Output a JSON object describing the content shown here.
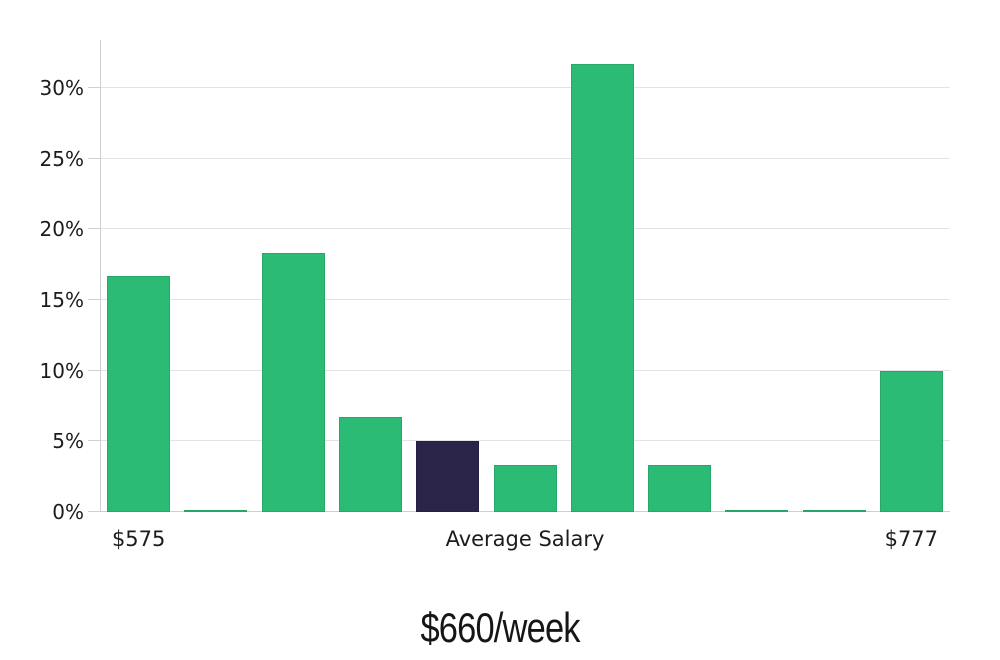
{
  "chart_data": {
    "type": "bar",
    "caption": "$660/week",
    "xlabel": "",
    "ylabel": "",
    "grid": true,
    "legend": "none",
    "values": [
      16.7,
      0.1,
      18.3,
      6.7,
      5.0,
      3.3,
      31.7,
      3.3,
      0.1,
      0.1,
      10.0
    ],
    "highlight_index": 4,
    "ymax": 33.4,
    "y_ticks": [
      {
        "value": 0,
        "label": "0%"
      },
      {
        "value": 5,
        "label": "5%"
      },
      {
        "value": 10,
        "label": "10%"
      },
      {
        "value": 15,
        "label": "15%"
      },
      {
        "value": 20,
        "label": "20%"
      },
      {
        "value": 25,
        "label": "25%"
      },
      {
        "value": 30,
        "label": "30%"
      }
    ],
    "x_tick_labels": [
      {
        "label": "$575",
        "pos": 0.0455
      },
      {
        "label": "Average Salary",
        "pos": 0.5
      },
      {
        "label": "$777",
        "pos": 0.9545
      }
    ],
    "colors": {
      "bar": "#2cbb74",
      "highlight_bar": "#2a2449",
      "gridline": "#e3e3e3",
      "axis": "#cfcfcf",
      "text": "#1c1c1c"
    }
  }
}
